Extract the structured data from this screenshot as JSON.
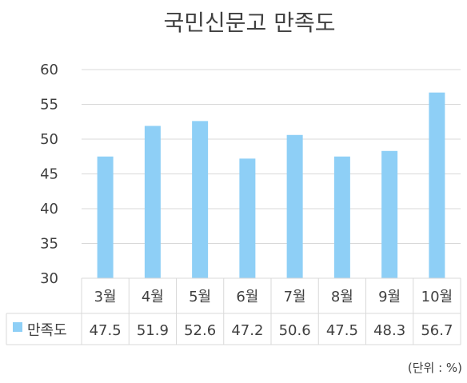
{
  "chart_data": {
    "type": "bar",
    "title": "국민신문고 만족도",
    "categories": [
      "3월",
      "4월",
      "5월",
      "6월",
      "7월",
      "8월",
      "9월",
      "10월"
    ],
    "series": [
      {
        "name": "만족도",
        "values": [
          47.5,
          51.9,
          52.6,
          47.2,
          50.6,
          47.5,
          48.3,
          56.7
        ],
        "value_labels": [
          "47.5",
          "51.9",
          "52.6",
          "47.2",
          "50.6",
          "47.5",
          "48.3",
          "56.7"
        ],
        "color": "#8ECFF6"
      }
    ],
    "ylim": [
      30,
      60
    ],
    "yticks": [
      "30",
      "35",
      "40",
      "45",
      "50",
      "55",
      "60"
    ],
    "grid": true,
    "legend": "data-table-left",
    "unit_note": "(단위 : %)"
  },
  "colors": {
    "bar": "#8ECFF6",
    "grid": "#D9D9D9",
    "text": "#404040"
  }
}
